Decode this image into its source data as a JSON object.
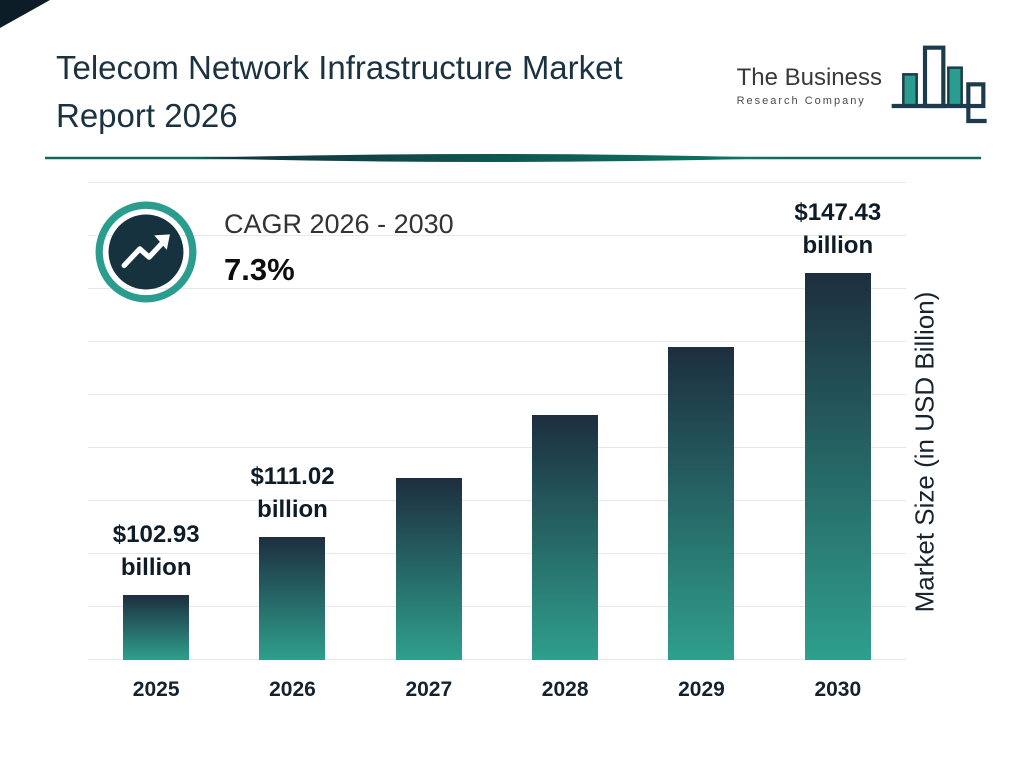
{
  "header": {
    "title_line1": "Telecom Network Infrastructure Market",
    "title_line2": "Report 2026"
  },
  "logo": {
    "line1": "The Business",
    "line2": "Research Company"
  },
  "cagr": {
    "label": "CAGR 2026 - 2030",
    "value": "7.3%"
  },
  "colors": {
    "accent_teal": "#2a9d8f",
    "dark_navy": "#16323e",
    "title_color": "#1b3340",
    "divider_teal": "#0d6b5b"
  },
  "chart_data": {
    "type": "bar",
    "title": "Telecom Network Infrastructure Market Report 2026",
    "categories": [
      "2025",
      "2026",
      "2027",
      "2028",
      "2029",
      "2030"
    ],
    "values": [
      102.93,
      111.02,
      119.12,
      127.82,
      137.15,
      147.43
    ],
    "value_labels": [
      "$102.93 billion",
      "$111.02 billion",
      null,
      null,
      null,
      "$147.43 billion"
    ],
    "xlabel": "",
    "ylabel": "Market Size (in USD Billion)",
    "ylim": [
      94,
      160
    ],
    "grid": true,
    "legend": false,
    "bar_color_top": "#1d2e3f",
    "bar_color_bottom": "#2f9f8d",
    "cagr_label": "CAGR 2026 - 2030",
    "cagr_value": "7.3%"
  }
}
